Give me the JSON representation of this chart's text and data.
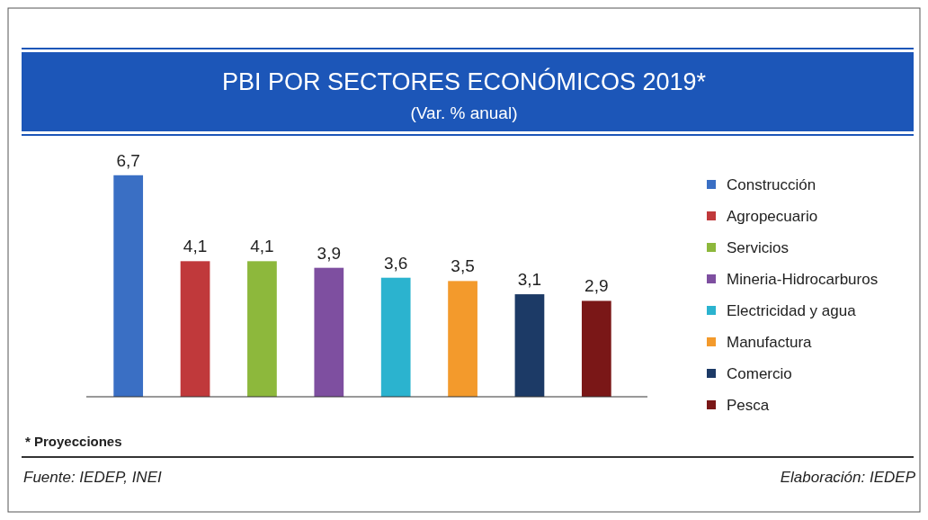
{
  "chart_data": {
    "type": "bar",
    "title": "PBI POR SECTORES ECONÓMICOS 2019*",
    "subtitle": "(Var. % anual)",
    "categories": [
      null,
      null,
      null,
      null,
      null,
      null,
      null,
      null
    ],
    "series": [
      {
        "name": "Construcción",
        "color": "#3a6fc4",
        "values": [
          6.7,
          null,
          null,
          null,
          null,
          null,
          null,
          null
        ],
        "value_labels": [
          "6,7",
          null,
          null,
          null,
          null,
          null,
          null,
          null
        ]
      },
      {
        "name": "Agropecuario",
        "color": "#c0393b",
        "values": [
          null,
          4.1,
          null,
          null,
          null,
          null,
          null,
          null
        ],
        "value_labels": [
          null,
          "4,1",
          null,
          null,
          null,
          null,
          null,
          null
        ]
      },
      {
        "name": "Servicios",
        "color": "#8db83c",
        "values": [
          null,
          null,
          4.1,
          null,
          null,
          null,
          null,
          null
        ],
        "value_labels": [
          null,
          null,
          "4,1",
          null,
          null,
          null,
          null,
          null
        ]
      },
      {
        "name": "Mineria-Hidrocarburos",
        "color": "#7e4fa0",
        "values": [
          null,
          null,
          null,
          3.9,
          null,
          null,
          null,
          null
        ],
        "value_labels": [
          null,
          null,
          null,
          "3,9",
          null,
          null,
          null,
          null
        ]
      },
      {
        "name": "Electricidad y agua",
        "color": "#2bb3cf",
        "values": [
          null,
          null,
          null,
          null,
          3.6,
          null,
          null,
          null
        ],
        "value_labels": [
          null,
          null,
          null,
          null,
          "3,6",
          null,
          null,
          null
        ]
      },
      {
        "name": "Manufactura",
        "color": "#f39a2c",
        "values": [
          null,
          null,
          null,
          null,
          null,
          3.5,
          null,
          null
        ],
        "value_labels": [
          null,
          null,
          null,
          null,
          null,
          "3,5",
          null,
          null
        ]
      },
      {
        "name": "Comercio",
        "color": "#1c3a66",
        "values": [
          null,
          null,
          null,
          null,
          null,
          null,
          3.1,
          null
        ],
        "value_labels": [
          null,
          null,
          null,
          null,
          null,
          null,
          "3,1",
          null
        ]
      },
      {
        "name": "Pesca",
        "color": "#7a1717",
        "values": [
          null,
          null,
          null,
          null,
          null,
          null,
          null,
          2.9
        ],
        "value_labels": [
          null,
          null,
          null,
          null,
          null,
          null,
          null,
          "2,9"
        ]
      }
    ],
    "stacked": true,
    "legend": "right",
    "annotations": [
      "* Proyecciones",
      "Fuente: IEDEP, INEI",
      "Elaboración: IEDEP"
    ]
  }
}
